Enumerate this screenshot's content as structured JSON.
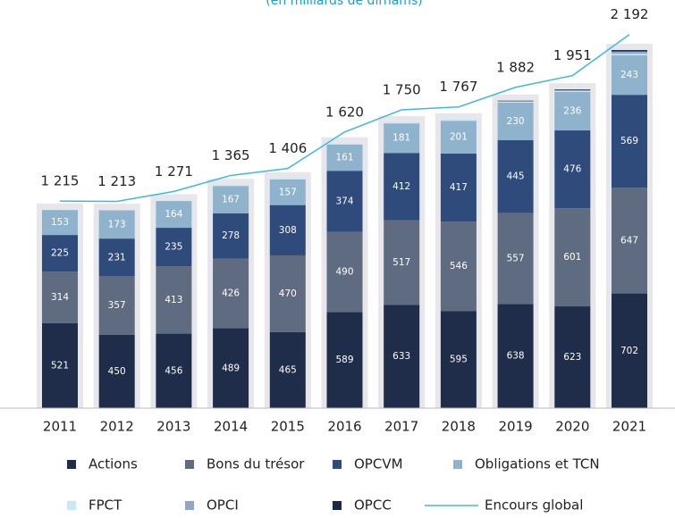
{
  "chart_data": {
    "type": "stacked_bar_line",
    "subtitle": "(en milliards de dirhams)",
    "categories": [
      "2011",
      "2012",
      "2013",
      "2014",
      "2015",
      "2016",
      "2017",
      "2018",
      "2019",
      "2020",
      "2021"
    ],
    "ylim": [
      0,
      2400
    ],
    "y2lim": [
      0,
      2300
    ],
    "series": [
      {
        "name": "Actions",
        "color": "#1f2d4b",
        "show_labels": true,
        "values": [
          521,
          450,
          456,
          489,
          465,
          589,
          633,
          595,
          638,
          623,
          702
        ]
      },
      {
        "name": "Bons du trésor",
        "color": "#5f6b80",
        "show_labels": true,
        "values": [
          314,
          357,
          413,
          426,
          470,
          490,
          517,
          546,
          557,
          601,
          647
        ]
      },
      {
        "name": "OPCVM",
        "color": "#2f4b7c",
        "show_labels": true,
        "values": [
          225,
          231,
          235,
          278,
          308,
          374,
          412,
          417,
          445,
          476,
          569
        ]
      },
      {
        "name": "Obligations et TCN",
        "color": "#8fb3cc",
        "show_labels": true,
        "values": [
          153,
          173,
          164,
          167,
          157,
          161,
          181,
          201,
          230,
          236,
          243
        ]
      },
      {
        "name": "FPCT",
        "color": "#c7e9f7",
        "show_labels": false,
        "values": [
          2,
          2,
          3,
          5,
          6,
          6,
          7,
          8,
          6,
          5,
          8
        ]
      },
      {
        "name": "OPCI",
        "color": "#8fa6c9",
        "show_labels": false,
        "values": [
          0,
          0,
          0,
          0,
          0,
          0,
          0,
          0,
          3,
          6,
          14
        ]
      },
      {
        "name": "OPCC",
        "color": "#1a2a48",
        "show_labels": false,
        "values": [
          0,
          0,
          0,
          0,
          0,
          0,
          0,
          0,
          3,
          4,
          9
        ]
      },
      {
        "name": "Encours global",
        "color": "#3fb8e0",
        "axis": "y2",
        "values": [
          1215,
          1213,
          1271,
          1365,
          1406,
          1620,
          1750,
          1767,
          1882,
          1951,
          2192
        ],
        "value_labels": [
          "1 215",
          "1 213",
          "1 271",
          "1 365",
          "1 406",
          "1 620",
          "1 750",
          "1 767",
          "1 882",
          "1 951",
          "2 192"
        ]
      }
    ]
  }
}
